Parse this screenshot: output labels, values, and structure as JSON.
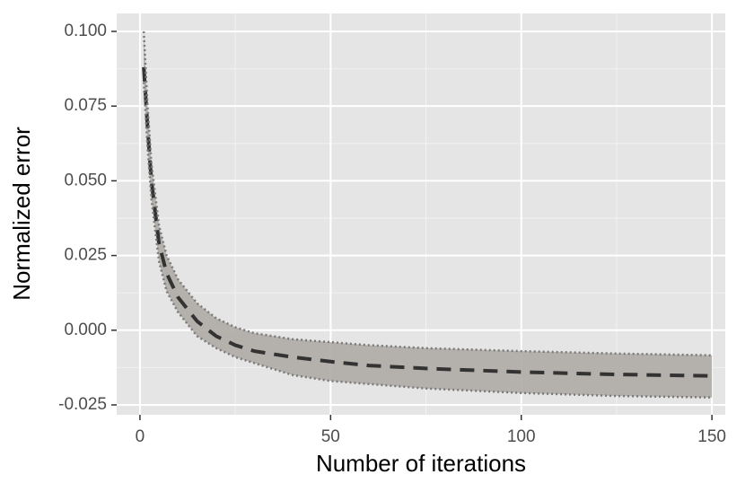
{
  "chart_data": {
    "type": "line",
    "xlabel": "Number of iterations",
    "ylabel": "Normalized error",
    "x": [
      1,
      2,
      3,
      5,
      7,
      10,
      15,
      20,
      25,
      30,
      40,
      50,
      60,
      75,
      100,
      125,
      150
    ],
    "series": [
      {
        "color": "#333333",
        "linestyle": "dashed",
        "values": [
          0.088,
          0.068,
          0.05,
          0.029,
          0.019,
          0.011,
          0.003,
          -0.002,
          -0.005,
          -0.007,
          -0.009,
          -0.0105,
          -0.0118,
          -0.0128,
          -0.014,
          -0.0148,
          -0.0153
        ]
      },
      {
        "color": "#7a7a7a",
        "linestyle": "dotted",
        "values": [
          0.1,
          0.075,
          0.056,
          0.035,
          0.025,
          0.017,
          0.009,
          0.004,
          0.001,
          -0.001,
          -0.003,
          -0.004,
          -0.005,
          -0.006,
          -0.007,
          -0.0078,
          -0.0084
        ]
      },
      {
        "color": "#7a7a7a",
        "linestyle": "dotted",
        "values": [
          0.083,
          0.061,
          0.044,
          0.023,
          0.013,
          0.006,
          -0.002,
          -0.006,
          -0.009,
          -0.011,
          -0.015,
          -0.017,
          -0.018,
          -0.0195,
          -0.021,
          -0.022,
          -0.0225
        ]
      }
    ],
    "band_color": "#aeaaa4",
    "xlim": [
      -6.1,
      153.5
    ],
    "ylim": [
      -0.0283,
      0.106
    ],
    "xticks": [
      0,
      50,
      100,
      150
    ],
    "yticks": [
      {
        "value": 0.1,
        "label": "0.100"
      },
      0.075,
      {
        "value": 0.05,
        "label": "0.050"
      },
      0.025,
      {
        "value": 0,
        "label": "0.000"
      },
      -0.025
    ],
    "grid": true
  }
}
